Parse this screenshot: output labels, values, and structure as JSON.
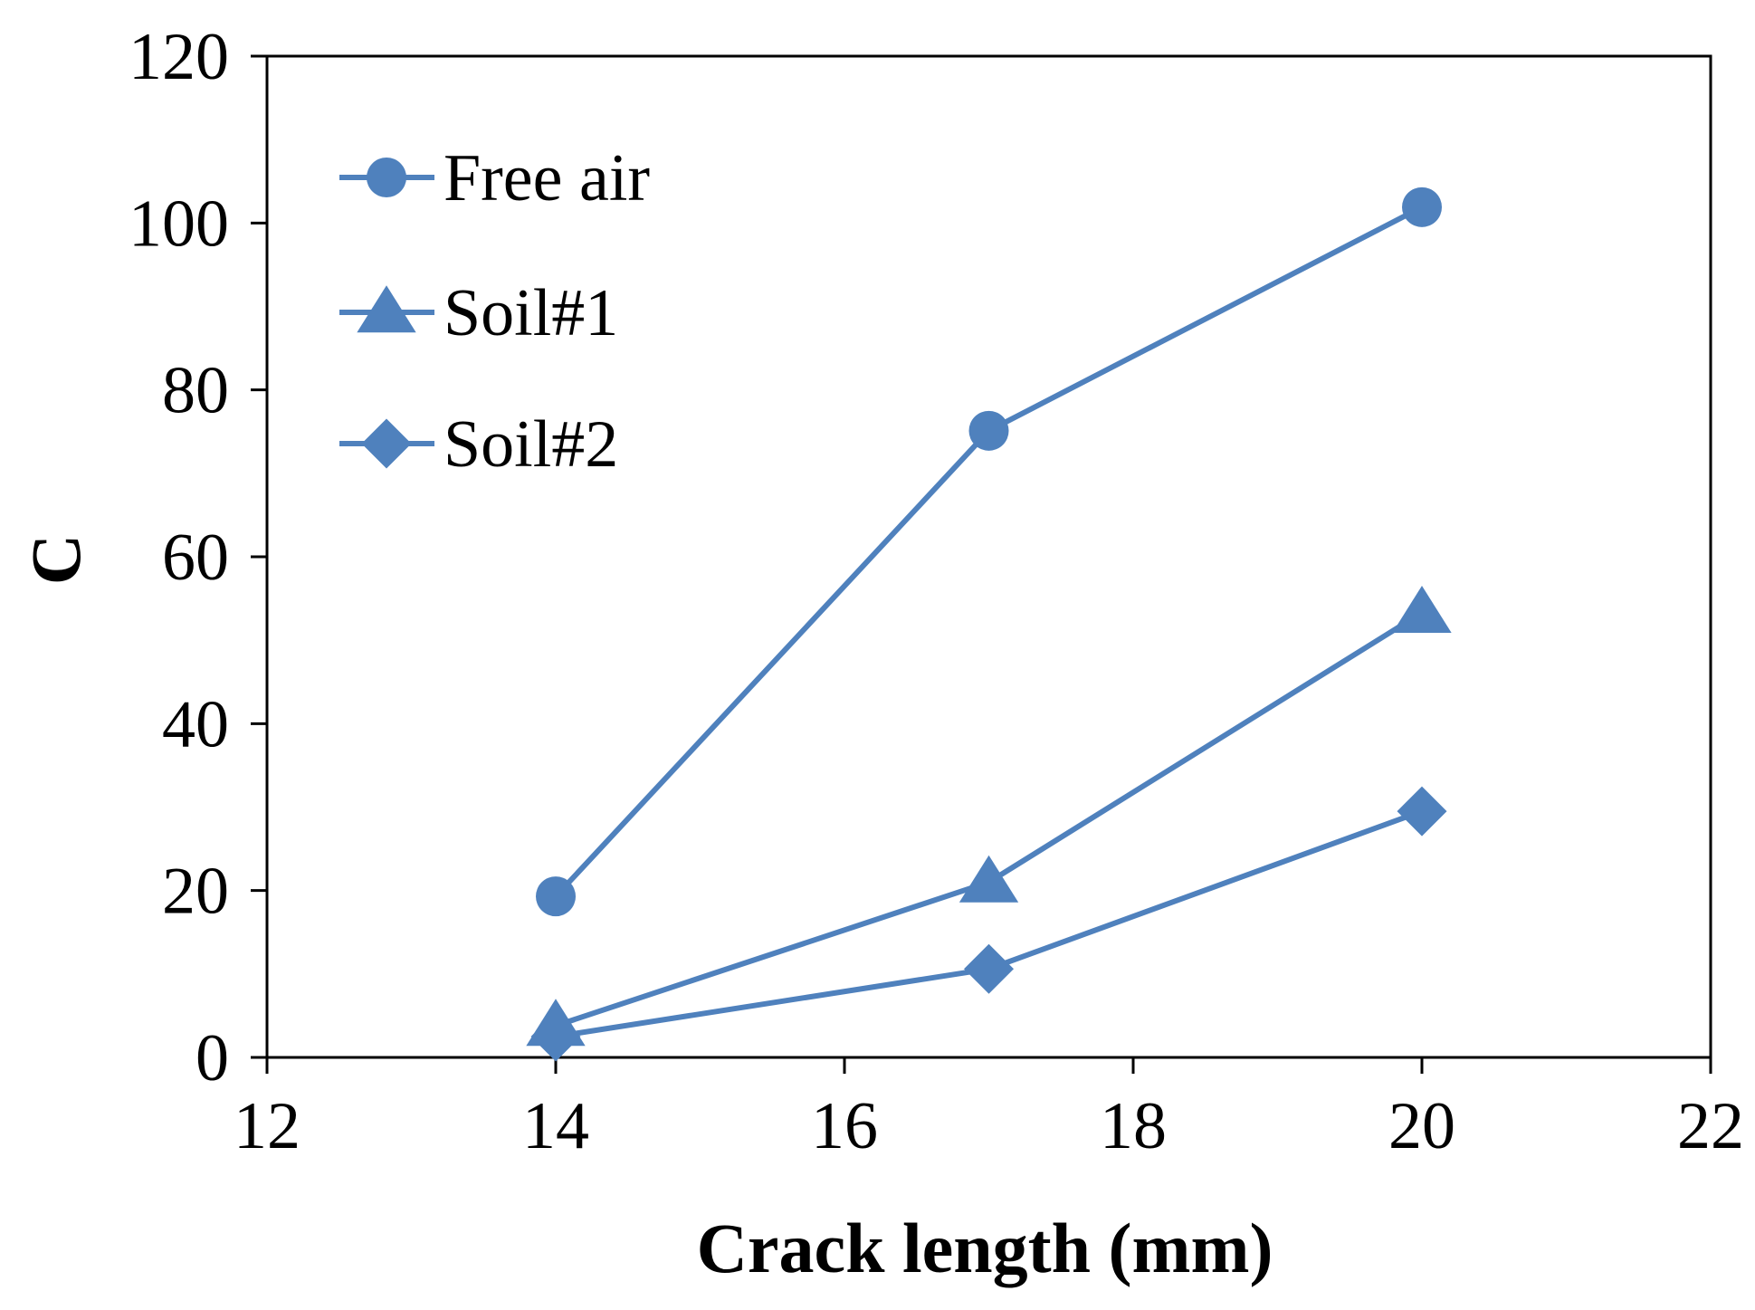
{
  "chart_data": {
    "type": "line",
    "xlabel": "Crack length (mm)",
    "ylabel": "C",
    "xlim": [
      12,
      22
    ],
    "ylim": [
      0,
      120
    ],
    "xticks": [
      "12",
      "14",
      "16",
      "18",
      "20",
      "22"
    ],
    "yticks": [
      "0",
      "20",
      "40",
      "60",
      "80",
      "100",
      "120"
    ],
    "grid": false,
    "legend_position": "top-left",
    "colors": {
      "series": "#4f81bd",
      "axis": "#000000"
    },
    "series": [
      {
        "name": "Free air",
        "marker": "circle",
        "x": [
          14,
          17,
          20
        ],
        "y": [
          19.3,
          75.1,
          101.9
        ]
      },
      {
        "name": "Soil#1",
        "marker": "triangle",
        "x": [
          14,
          17,
          20
        ],
        "y": [
          3.8,
          21.0,
          53.3
        ]
      },
      {
        "name": "Soil#2",
        "marker": "diamond",
        "x": [
          14,
          17,
          20
        ],
        "y": [
          2.5,
          10.6,
          29.5
        ]
      }
    ]
  }
}
